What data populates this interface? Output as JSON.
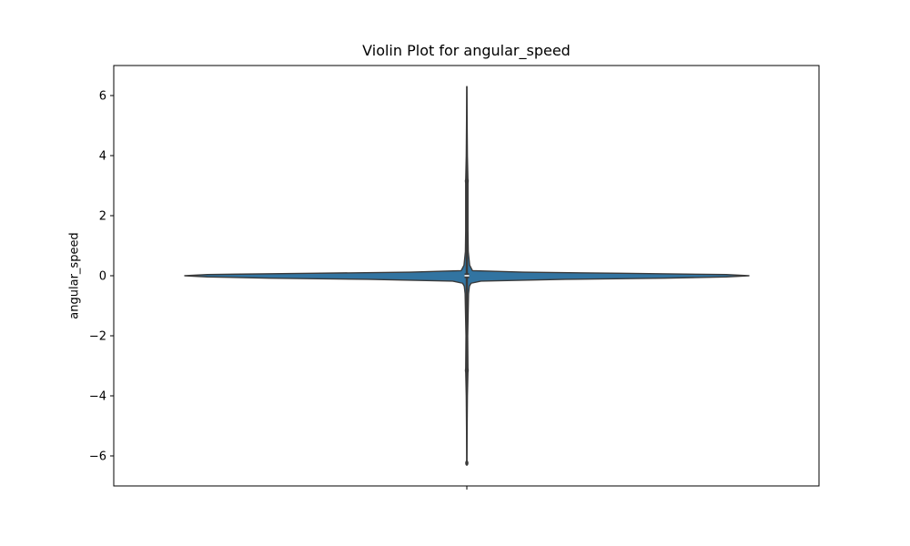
{
  "chart_data": {
    "type": "violin",
    "title": "Violin Plot for angular_speed",
    "xlabel": "",
    "ylabel": "angular_speed",
    "ylim": [
      -7.0,
      7.0
    ],
    "yticks": [
      -6,
      -4,
      -2,
      0,
      2,
      4,
      6
    ],
    "ytick_labels": [
      "−6",
      "−4",
      "−2",
      "0",
      "2",
      "4",
      "6"
    ],
    "categories": [
      ""
    ],
    "color": "#3274a1",
    "edge_color": "#3a3a3a",
    "violin": {
      "range": [
        -6.3,
        6.3
      ],
      "quartiles": [
        -0.02,
        0.0,
        0.02
      ],
      "whiskers": [
        -3.15,
        3.15
      ],
      "median": 0.0,
      "density_profile": [
        [
          -6.3,
          0.0
        ],
        [
          -4.0,
          0.002
        ],
        [
          -3.16,
          0.004
        ],
        [
          -2.0,
          0.003
        ],
        [
          -0.6,
          0.006
        ],
        [
          -0.35,
          0.009
        ],
        [
          -0.25,
          0.015
        ],
        [
          -0.18,
          0.05
        ],
        [
          -0.12,
          0.35
        ],
        [
          -0.08,
          0.7
        ],
        [
          -0.04,
          0.92
        ],
        [
          0.0,
          1.0
        ],
        [
          0.04,
          0.92
        ],
        [
          0.08,
          0.55
        ],
        [
          0.12,
          0.2
        ],
        [
          0.17,
          0.02
        ],
        [
          0.35,
          0.01
        ],
        [
          0.8,
          0.005
        ],
        [
          1.5,
          0.004
        ],
        [
          3.14,
          0.004
        ],
        [
          4.0,
          0.002
        ],
        [
          6.3,
          0.0
        ]
      ]
    },
    "grid": false,
    "legend": "none"
  }
}
